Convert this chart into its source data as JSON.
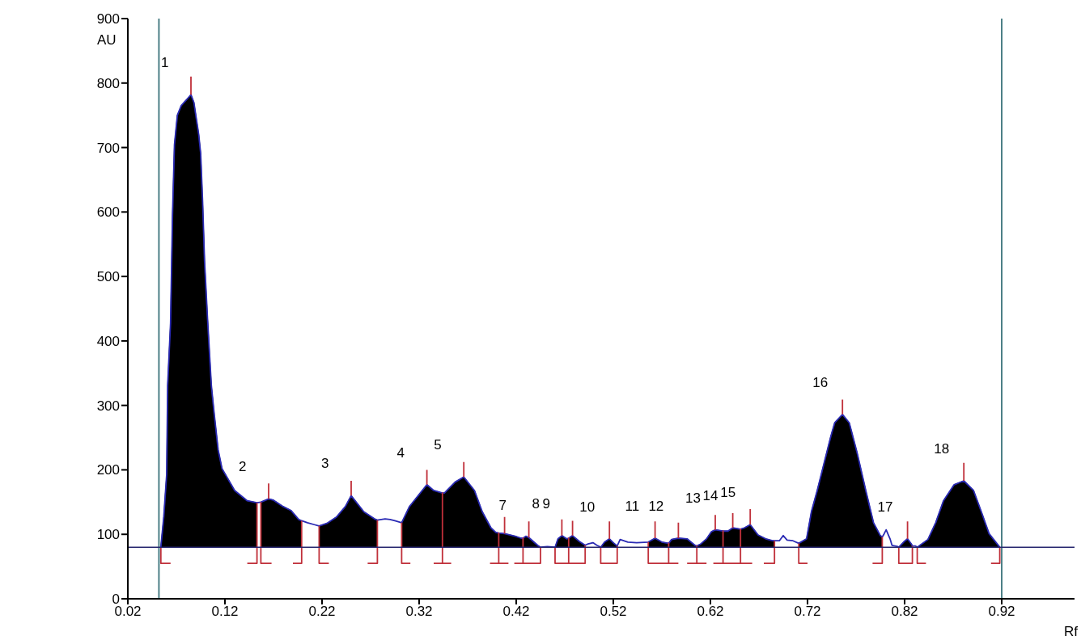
{
  "chart_data": {
    "type": "area",
    "xlabel": "Rf",
    "ylabel": "AU",
    "xlim": [
      0.02,
      0.995
    ],
    "xticks": [
      0.02,
      0.12,
      0.22,
      0.32,
      0.42,
      0.52,
      0.62,
      0.72,
      0.82,
      0.92
    ],
    "ylim": [
      0,
      900
    ],
    "yticks": [
      0,
      100,
      200,
      300,
      400,
      500,
      600,
      700,
      800,
      900
    ],
    "series": [
      {
        "color": "#000000",
        "x": [
          0.054,
          0.057,
          0.06,
          0.061,
          0.064,
          0.066,
          0.068,
          0.071,
          0.075,
          0.081,
          0.085,
          0.088,
          0.093,
          0.095,
          0.097,
          0.099,
          0.102,
          0.106,
          0.109,
          0.113,
          0.117,
          0.13,
          0.143,
          0.153,
          null,
          0.157,
          0.165,
          0.17,
          0.18,
          0.188,
          0.196,
          0.199,
          null,
          0.217,
          0.225,
          0.235,
          0.244,
          0.25,
          0.263,
          0.274,
          0.277,
          null,
          0.302,
          0.31,
          0.319,
          0.328,
          0.335,
          0.344,
          0.346,
          0.357,
          0.366,
          0.377,
          0.385,
          0.394,
          0.399,
          0.402,
          0.408,
          0.419,
          0.425,
          0.427,
          0.43,
          0.433,
          0.442,
          0.445,
          null,
          0.46,
          0.463,
          0.467,
          0.472,
          0.474,
          0.478,
          0.485,
          0.491,
          null,
          0.507,
          0.511,
          0.516,
          0.52,
          0.524,
          null,
          0.556,
          0.563,
          0.57,
          0.577,
          0.58,
          0.587,
          0.596,
          0.604,
          0.606,
          0.61,
          0.616,
          0.621,
          0.625,
          0.633,
          0.638,
          0.643,
          0.651,
          0.655,
          0.661,
          0.669,
          0.677,
          0.684,
          0.686,
          null,
          0.711,
          0.719,
          0.724,
          0.73,
          0.737,
          0.744,
          0.748,
          0.756,
          0.763,
          0.771,
          0.78,
          0.788,
          0.795,
          0.797,
          null,
          0.814,
          0.819,
          0.823,
          0.827,
          0.828,
          null,
          0.833,
          0.844,
          0.852,
          0.86,
          0.871,
          0.881,
          0.891,
          0.899,
          0.907,
          0.918
        ],
        "values": [
          80,
          127,
          193,
          331,
          428,
          595,
          704,
          750,
          765,
          775,
          782,
          770,
          720,
          691,
          616,
          524,
          436,
          331,
          286,
          231,
          202,
          168,
          152,
          149,
          null,
          150,
          155,
          153,
          143,
          137,
          123,
          121,
          null,
          113,
          117,
          127,
          143,
          160,
          135,
          124,
          122,
          null,
          118,
          143,
          160,
          177,
          168,
          164,
          164,
          181,
          189,
          168,
          135,
          110,
          103,
          102,
          101,
          97,
          94,
          94,
          97,
          95,
          83,
          80,
          null,
          80,
          93,
          98,
          93,
          94,
          98,
          89,
          83,
          null,
          80,
          88,
          93,
          87,
          82,
          null,
          88,
          94,
          88,
          86,
          92,
          94,
          93,
          83,
          82,
          85,
          93,
          104,
          107,
          105,
          105,
          110,
          108,
          110,
          115,
          99,
          93,
          90,
          90,
          null,
          86,
          93,
          135,
          168,
          210,
          252,
          273,
          286,
          273,
          227,
          168,
          118,
          98,
          96,
          null,
          80,
          88,
          93,
          85,
          82,
          null,
          80,
          92,
          118,
          152,
          177,
          183,
          168,
          135,
          101,
          80
        ]
      },
      {
        "type": "line",
        "color": "#2a2ab4",
        "x": [
          0.054,
          0.057,
          0.06,
          0.061,
          0.064,
          0.066,
          0.068,
          0.071,
          0.075,
          0.081,
          0.085,
          0.088,
          0.093,
          0.095,
          0.097,
          0.099,
          0.102,
          0.106,
          0.109,
          0.113,
          0.117,
          0.13,
          0.143,
          0.153,
          0.157,
          0.165,
          0.17,
          0.18,
          0.188,
          0.196,
          0.199,
          0.205,
          0.212,
          0.217,
          0.225,
          0.235,
          0.244,
          0.25,
          0.263,
          0.274,
          0.277,
          0.285,
          0.29,
          0.295,
          0.302,
          0.31,
          0.319,
          0.328,
          0.335,
          0.344,
          0.346,
          0.357,
          0.366,
          0.377,
          0.385,
          0.394,
          0.399,
          0.402,
          0.408,
          0.419,
          0.425,
          0.427,
          0.43,
          0.433,
          0.442,
          0.445,
          0.452,
          0.46,
          0.463,
          0.467,
          0.472,
          0.474,
          0.478,
          0.485,
          0.491,
          0.494,
          0.499,
          0.503,
          0.507,
          0.511,
          0.516,
          0.52,
          0.524,
          0.527,
          0.535,
          0.544,
          0.556,
          0.563,
          0.57,
          0.577,
          0.58,
          0.587,
          0.596,
          0.604,
          0.606,
          0.61,
          0.616,
          0.621,
          0.625,
          0.633,
          0.638,
          0.643,
          0.651,
          0.655,
          0.661,
          0.669,
          0.677,
          0.684,
          0.686,
          0.691,
          0.695,
          0.699,
          0.705,
          0.711,
          0.719,
          0.724,
          0.73,
          0.737,
          0.744,
          0.748,
          0.756,
          0.763,
          0.771,
          0.78,
          0.788,
          0.795,
          0.797,
          0.799,
          0.801,
          0.805,
          0.807,
          0.813,
          0.814,
          0.819,
          0.823,
          0.827,
          0.828,
          0.831,
          0.833,
          0.844,
          0.852,
          0.86,
          0.871,
          0.881,
          0.891,
          0.899,
          0.907,
          0.918
        ],
        "values": [
          80,
          127,
          193,
          331,
          428,
          595,
          704,
          750,
          765,
          775,
          782,
          770,
          720,
          691,
          616,
          524,
          436,
          331,
          286,
          231,
          202,
          168,
          152,
          149,
          150,
          155,
          153,
          143,
          137,
          123,
          121,
          118,
          115,
          113,
          117,
          127,
          143,
          160,
          135,
          124,
          122,
          124,
          123,
          121,
          118,
          143,
          160,
          177,
          168,
          164,
          164,
          181,
          189,
          168,
          135,
          110,
          103,
          102,
          101,
          97,
          94,
          94,
          97,
          95,
          83,
          80,
          81,
          80,
          93,
          98,
          93,
          94,
          98,
          89,
          83,
          85,
          87,
          83,
          80,
          88,
          93,
          87,
          82,
          92,
          88,
          87,
          88,
          94,
          88,
          86,
          92,
          94,
          93,
          83,
          82,
          85,
          93,
          104,
          107,
          105,
          105,
          110,
          108,
          110,
          115,
          99,
          93,
          90,
          90,
          90,
          98,
          91,
          90,
          86,
          93,
          135,
          168,
          210,
          252,
          273,
          286,
          273,
          227,
          168,
          118,
          98,
          96,
          101,
          107,
          93,
          83,
          81,
          80,
          88,
          93,
          85,
          82,
          82,
          80,
          92,
          118,
          152,
          177,
          183,
          168,
          135,
          101,
          80
        ]
      },
      {
        "type": "line",
        "color": "#c0303a",
        "x": [
          0.085,
          0.085,
          null,
          0.165,
          0.165,
          null,
          0.25,
          0.25,
          null,
          0.328,
          0.328,
          null,
          0.366,
          0.366,
          null,
          0.408,
          0.408,
          null,
          0.433,
          0.433,
          null,
          0.467,
          0.467,
          null,
          0.478,
          0.478,
          null,
          0.516,
          0.516,
          null,
          0.563,
          0.563,
          null,
          0.587,
          0.587,
          null,
          0.625,
          0.625,
          null,
          0.643,
          0.643,
          null,
          0.661,
          0.661,
          null,
          0.756,
          0.756,
          null,
          0.823,
          0.823,
          null,
          0.881,
          0.881,
          null,
          0.064,
          0.054,
          0.054,
          null,
          0.143,
          0.153,
          0.153,
          null,
          0.168,
          0.157,
          0.157,
          null,
          0.19,
          0.199,
          0.199,
          null,
          0.227,
          0.217,
          0.217,
          null,
          0.267,
          0.277,
          0.277,
          null,
          0.311,
          0.302,
          0.302,
          null,
          0.335,
          0.344,
          0.344,
          0.344,
          0.353,
          null,
          0.393,
          0.402,
          0.402,
          0.402,
          0.412,
          null,
          0.418,
          0.427,
          0.427,
          0.427,
          0.445,
          0.445,
          null,
          0.46,
          0.46,
          0.474,
          0.474,
          0.474,
          0.491,
          0.491,
          null,
          0.507,
          0.507,
          0.524,
          0.524,
          null,
          0.556,
          0.556,
          0.577,
          0.577,
          0.577,
          0.587,
          null,
          0.596,
          0.606,
          0.606,
          0.606,
          0.616,
          null,
          0.623,
          0.633,
          0.633,
          0.633,
          0.651,
          0.651,
          0.651,
          0.663,
          null,
          0.675,
          0.686,
          0.686,
          null,
          0.711,
          0.711,
          0.72,
          null,
          0.787,
          0.797,
          0.797,
          null,
          0.814,
          0.814,
          0.828,
          0.828,
          null,
          0.833,
          0.833,
          0.842,
          null,
          0.909,
          0.918,
          0.918
        ],
        "values": [
          782,
          810,
          null,
          155,
          179,
          null,
          160,
          183,
          null,
          177,
          200,
          null,
          189,
          212,
          null,
          101,
          127,
          null,
          95,
          120,
          null,
          98,
          123,
          null,
          98,
          121,
          null,
          93,
          120,
          null,
          94,
          120,
          null,
          94,
          118,
          null,
          107,
          130,
          null,
          110,
          133,
          null,
          115,
          139,
          null,
          286,
          309,
          null,
          93,
          120,
          null,
          183,
          211,
          null,
          55,
          55,
          80,
          null,
          55,
          55,
          149,
          null,
          55,
          55,
          150,
          null,
          55,
          55,
          121,
          null,
          55,
          55,
          113,
          null,
          55,
          55,
          122,
          null,
          55,
          55,
          118,
          null,
          55,
          55,
          164,
          55,
          55,
          null,
          55,
          55,
          102,
          55,
          55,
          null,
          55,
          55,
          94,
          55,
          55,
          80,
          null,
          80,
          55,
          55,
          94,
          55,
          55,
          83,
          null,
          80,
          55,
          55,
          82,
          null,
          88,
          55,
          55,
          86,
          55,
          55,
          null,
          55,
          55,
          82,
          55,
          55,
          null,
          55,
          55,
          105,
          55,
          55,
          108,
          55,
          55,
          null,
          55,
          55,
          90,
          null,
          86,
          55,
          55,
          null,
          55,
          55,
          96,
          null,
          80,
          55,
          55,
          82,
          null,
          80,
          55,
          55,
          null,
          55,
          55,
          80
        ]
      }
    ],
    "ref_lines": [
      {
        "axis": "x",
        "value": 0.052,
        "color": "#4d8087"
      },
      {
        "axis": "x",
        "value": 0.92,
        "color": "#4d8087"
      },
      {
        "axis": "y",
        "value": 80,
        "color": "#26266e"
      }
    ],
    "annotations": [
      {
        "text": "1",
        "x": 0.085,
        "y": 782
      },
      {
        "text": "2",
        "x": 0.165,
        "y": 155
      },
      {
        "text": "3",
        "x": 0.25,
        "y": 160
      },
      {
        "text": "4",
        "x": 0.328,
        "y": 177
      },
      {
        "text": "5",
        "x": 0.366,
        "y": 189
      },
      {
        "text": "7",
        "x": 0.433,
        "y": 95
      },
      {
        "text": "8",
        "x": 0.467,
        "y": 98
      },
      {
        "text": "9",
        "x": 0.478,
        "y": 98
      },
      {
        "text": "10",
        "x": 0.516,
        "y": 93
      },
      {
        "text": "11",
        "x": 0.563,
        "y": 94
      },
      {
        "text": "12",
        "x": 0.587,
        "y": 94
      },
      {
        "text": "13",
        "x": 0.625,
        "y": 107
      },
      {
        "text": "14",
        "x": 0.643,
        "y": 110
      },
      {
        "text": "15",
        "x": 0.661,
        "y": 115
      },
      {
        "text": "16",
        "x": 0.756,
        "y": 286
      },
      {
        "text": "17",
        "x": 0.823,
        "y": 93
      },
      {
        "text": "18",
        "x": 0.881,
        "y": 183
      }
    ]
  }
}
